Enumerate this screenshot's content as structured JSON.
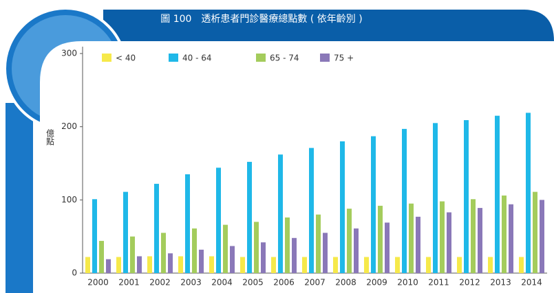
{
  "chart_data": {
    "type": "bar",
    "title": "圖 100　透析患者門診醫療總點數 ( 依年齡別 )",
    "y_label": "億點",
    "categories": [
      "2000",
      "2001",
      "2002",
      "2003",
      "2004",
      "2005",
      "2006",
      "2007",
      "2008",
      "2009",
      "2010",
      "2011",
      "2012",
      "2013",
      "2014"
    ],
    "series": [
      {
        "name": "< 40",
        "color": "#f6e94a",
        "values": [
          22,
          22,
          23,
          23,
          23,
          22,
          22,
          22,
          22,
          22,
          22,
          22,
          22,
          22,
          22
        ]
      },
      {
        "name": "40 - 64",
        "color": "#1fb8e8",
        "values": [
          101,
          111,
          122,
          135,
          144,
          152,
          162,
          171,
          180,
          187,
          197,
          205,
          209,
          215,
          219
        ]
      },
      {
        "name": "65 - 74",
        "color": "#a4cc5c",
        "values": [
          44,
          50,
          55,
          61,
          66,
          70,
          76,
          80,
          88,
          92,
          95,
          98,
          101,
          106,
          111
        ]
      },
      {
        "name": "75 +",
        "color": "#8a78b8",
        "values": [
          19,
          23,
          27,
          32,
          37,
          42,
          48,
          55,
          61,
          69,
          77,
          83,
          89,
          94,
          100
        ]
      }
    ],
    "ylim": [
      0,
      300
    ],
    "yticks": [
      0,
      100,
      200,
      300
    ],
    "legend": "top"
  }
}
